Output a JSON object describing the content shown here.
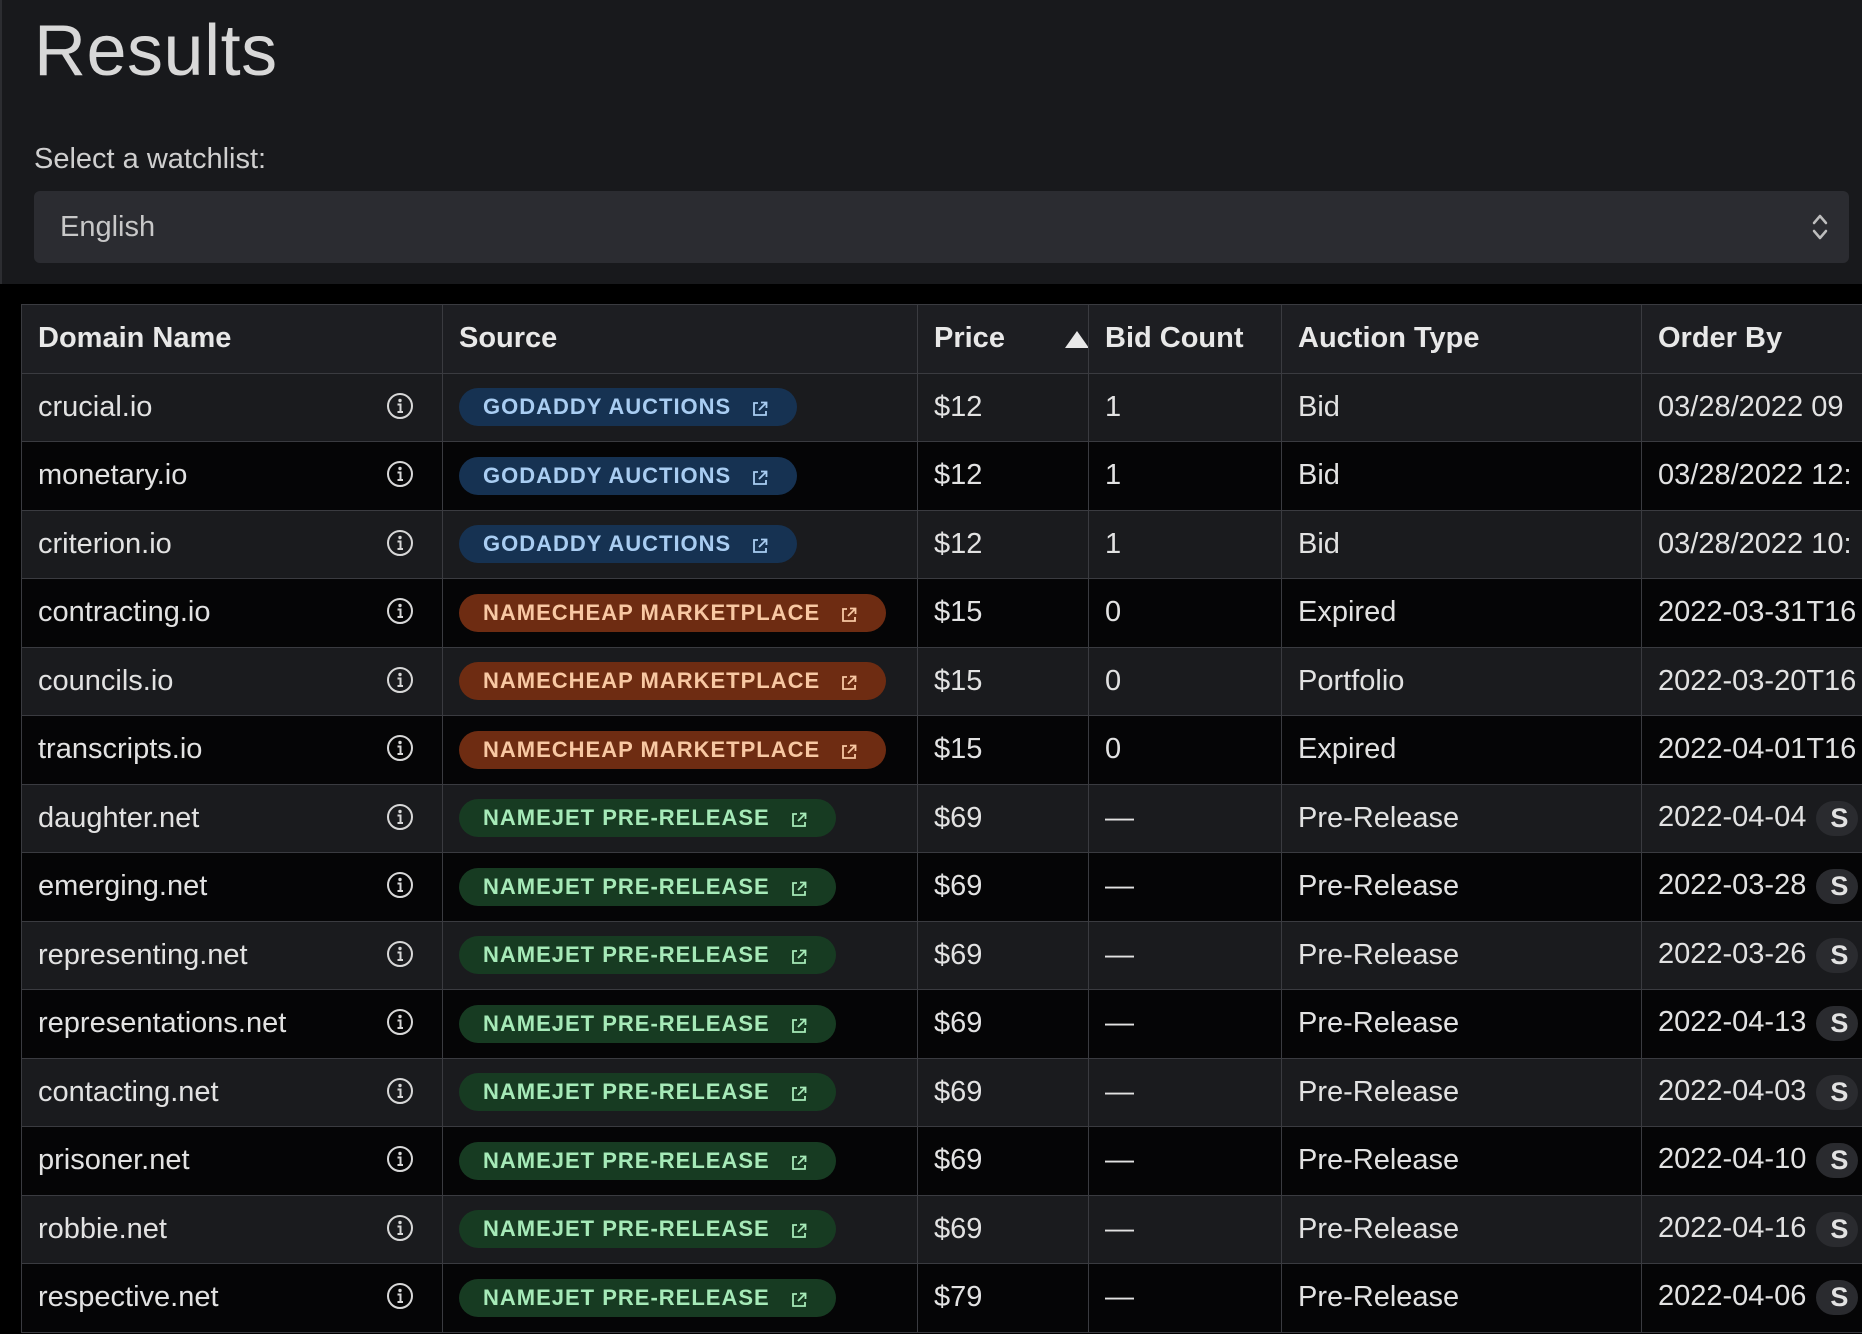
{
  "page": {
    "title": "Results"
  },
  "watchlist": {
    "label": "Select a watchlist:",
    "selected": "English"
  },
  "table": {
    "columns": [
      "Domain Name",
      "Source",
      "Price",
      "Bid Count",
      "Auction Type",
      "Order By"
    ],
    "sort": {
      "column": "Price",
      "direction": "ascending"
    },
    "rows": [
      {
        "domain": "crucial.io",
        "source": "GODADDY AUCTIONS",
        "source_kind": "godaddy",
        "price": "$12",
        "bid_count": "1",
        "auction_type": "Bid",
        "order_by": "03/28/2022 09",
        "chip": ""
      },
      {
        "domain": "monetary.io",
        "source": "GODADDY AUCTIONS",
        "source_kind": "godaddy",
        "price": "$12",
        "bid_count": "1",
        "auction_type": "Bid",
        "order_by": "03/28/2022 12:",
        "chip": ""
      },
      {
        "domain": "criterion.io",
        "source": "GODADDY AUCTIONS",
        "source_kind": "godaddy",
        "price": "$12",
        "bid_count": "1",
        "auction_type": "Bid",
        "order_by": "03/28/2022 10:",
        "chip": ""
      },
      {
        "domain": "contracting.io",
        "source": "NAMECHEAP MARKETPLACE",
        "source_kind": "namecheap",
        "price": "$15",
        "bid_count": "0",
        "auction_type": "Expired",
        "order_by": "2022-03-31T16",
        "chip": ""
      },
      {
        "domain": "councils.io",
        "source": "NAMECHEAP MARKETPLACE",
        "source_kind": "namecheap",
        "price": "$15",
        "bid_count": "0",
        "auction_type": "Portfolio",
        "order_by": "2022-03-20T16",
        "chip": ""
      },
      {
        "domain": "transcripts.io",
        "source": "NAMECHEAP MARKETPLACE",
        "source_kind": "namecheap",
        "price": "$15",
        "bid_count": "0",
        "auction_type": "Expired",
        "order_by": "2022-04-01T16",
        "chip": ""
      },
      {
        "domain": "daughter.net",
        "source": "NAMEJET PRE-RELEASE",
        "source_kind": "namejet",
        "price": "$69",
        "bid_count": "—",
        "auction_type": "Pre-Release",
        "order_by": "2022-04-04",
        "chip": "S"
      },
      {
        "domain": "emerging.net",
        "source": "NAMEJET PRE-RELEASE",
        "source_kind": "namejet",
        "price": "$69",
        "bid_count": "—",
        "auction_type": "Pre-Release",
        "order_by": "2022-03-28",
        "chip": "S"
      },
      {
        "domain": "representing.net",
        "source": "NAMEJET PRE-RELEASE",
        "source_kind": "namejet",
        "price": "$69",
        "bid_count": "—",
        "auction_type": "Pre-Release",
        "order_by": "2022-03-26",
        "chip": "S"
      },
      {
        "domain": "representations.net",
        "source": "NAMEJET PRE-RELEASE",
        "source_kind": "namejet",
        "price": "$69",
        "bid_count": "—",
        "auction_type": "Pre-Release",
        "order_by": "2022-04-13",
        "chip": "S"
      },
      {
        "domain": "contacting.net",
        "source": "NAMEJET PRE-RELEASE",
        "source_kind": "namejet",
        "price": "$69",
        "bid_count": "—",
        "auction_type": "Pre-Release",
        "order_by": "2022-04-03",
        "chip": "S"
      },
      {
        "domain": "prisoner.net",
        "source": "NAMEJET PRE-RELEASE",
        "source_kind": "namejet",
        "price": "$69",
        "bid_count": "—",
        "auction_type": "Pre-Release",
        "order_by": "2022-04-10",
        "chip": "S"
      },
      {
        "domain": "robbie.net",
        "source": "NAMEJET PRE-RELEASE",
        "source_kind": "namejet",
        "price": "$69",
        "bid_count": "—",
        "auction_type": "Pre-Release",
        "order_by": "2022-04-16",
        "chip": "S"
      },
      {
        "domain": "respective.net",
        "source": "NAMEJET PRE-RELEASE",
        "source_kind": "namejet",
        "price": "$79",
        "bid_count": "—",
        "auction_type": "Pre-Release",
        "order_by": "2022-04-06",
        "chip": "S"
      }
    ]
  },
  "icons": {
    "info": "info-circle-icon",
    "external": "external-link-icon",
    "select": "select-chevrons-icon",
    "sort": "sort-ascending-icon"
  },
  "colors": {
    "godaddy_bg": "#163252",
    "godaddy_fg": "#a9cdf2",
    "namecheap_bg": "#6e2c12",
    "namecheap_fg": "#f8c8a3",
    "namejet_bg": "#173b22",
    "namejet_fg": "#a6eab8"
  }
}
